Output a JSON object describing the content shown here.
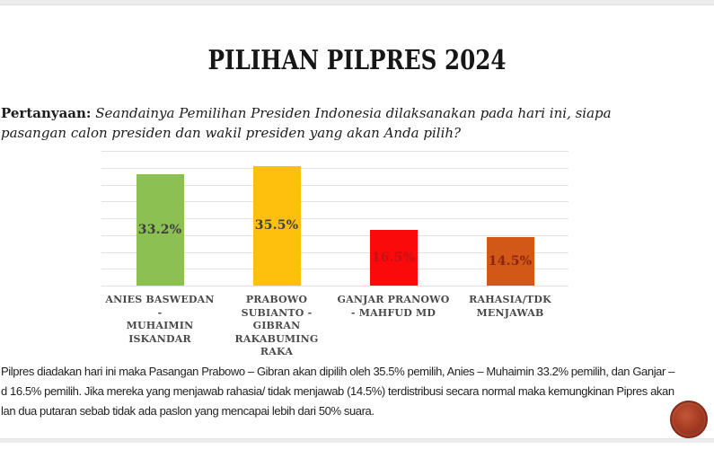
{
  "slide": {
    "title": "PILIHAN PILPRES 2024",
    "question": {
      "label": "Pertanyaan:",
      "text": " Seandainya Pemilihan Presiden Indonesia dilaksanakan pada hari ini, siapa pasangan calon presiden dan wakil presiden yang akan Anda pilih?"
    },
    "summary_lines": [
      "Pilpres diadakan hari ini maka Pasangan Prabowo – Gibran akan dipilih oleh 35.5% pemilih, Anies – Muhaimin 33.2% pemilih, dan Ganjar –",
      "d 16.5% pemilih. Jika mereka yang menjawab rahasia/ tidak menjawab (14.5%) terdistribusi secara normal maka kemungkinan Pipres akan",
      "lan dua putaran sebab tidak ada paslon yang mencapai lebih dari 50% suara."
    ],
    "logo_icon": "circular-red-stamp"
  },
  "chart_data": {
    "type": "bar",
    "title": "PILIHAN PILPRES 2024",
    "categories": [
      "ANIES BASWEDAN -\nMUHAIMIN\nISKANDAR",
      "PRABOWO\nSUBIANTO - GIBRAN\nRAKABUMING\nRAKA",
      "GANJAR PRANOWO\n- MAHFUD MD",
      "RAHASIA/TDK\nMENJAWAB"
    ],
    "values": [
      33.2,
      35.5,
      16.5,
      14.5
    ],
    "value_labels": [
      "33.2%",
      "35.5%",
      "16.5%",
      "14.5%"
    ],
    "bar_colors": [
      "#8DC052",
      "#FEC00D",
      "#FA0A0A",
      "#D25817"
    ],
    "value_label_colors": [
      "#3D3D3D",
      "#3F3F3F",
      "#C41212",
      "#8A2410"
    ],
    "xlabel": "",
    "ylabel": "",
    "ylim": [
      0,
      40
    ],
    "grid_step": 5,
    "grid": true,
    "legend": false
  }
}
